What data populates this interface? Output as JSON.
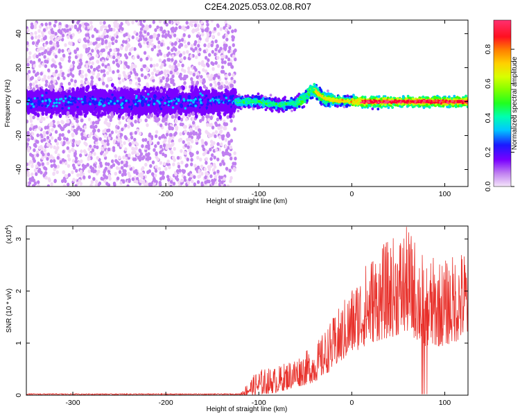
{
  "title": "C2E4.2025.053.02.08.R07",
  "chart_data": [
    {
      "type": "heatmap",
      "title": "C2E4.2025.053.02.08.R07",
      "xlabel": "Height of straight line (km)",
      "ylabel": "Frequency (Hz)",
      "xlim": [
        -350,
        125
      ],
      "ylim": [
        -50,
        48
      ],
      "xticks": [
        -300,
        -200,
        -100,
        0,
        100
      ],
      "yticks": [
        -40,
        -20,
        0,
        20,
        40
      ],
      "colorbar": {
        "label": "Normalized spectral amplitude",
        "range": [
          0,
          0.97
        ],
        "ticks": [
          "0.0",
          "0.2",
          "0.4",
          "0.6",
          "0.8"
        ],
        "colormap": [
          "#f2d9f7",
          "#c080f0",
          "#7a00ff",
          "#1a1aff",
          "#00c8ff",
          "#00ff90",
          "#3cff00",
          "#c8ff00",
          "#ffd000",
          "#ff7000",
          "#ff0030",
          "#ff4080"
        ]
      },
      "ridge": {
        "description_points_x": [
          -125,
          -100,
          -80,
          -60,
          -50,
          -45,
          -40,
          -35,
          -30,
          -20,
          0,
          20,
          40,
          60,
          80,
          100,
          125
        ],
        "description_points_freq": [
          0,
          0,
          -2,
          -1,
          2,
          6,
          7,
          4,
          2,
          1,
          0,
          0,
          0,
          0,
          0,
          0,
          0
        ]
      }
    },
    {
      "type": "line",
      "xlabel": "Height of straight line (km)",
      "ylabel": "SNR (10 * v/v)",
      "exponent_label": "(x10",
      "exponent_power": "4",
      "exponent_close": ")",
      "xlim": [
        -350,
        125
      ],
      "ylim": [
        0,
        3.25
      ],
      "xticks": [
        -300,
        -200,
        -100,
        0,
        100
      ],
      "yticks": [
        0,
        1,
        2,
        3
      ],
      "series_color": "#e8302a",
      "envelope": {
        "x": [
          -350,
          -120,
          -110,
          -100,
          -80,
          -60,
          -40,
          -20,
          0,
          20,
          40,
          60,
          80,
          100,
          125
        ],
        "upper": [
          0.03,
          0.04,
          0.3,
          0.5,
          0.55,
          0.75,
          0.95,
          1.5,
          2.1,
          2.7,
          3.0,
          3.25,
          2.7,
          2.6,
          2.9
        ],
        "lower": [
          0.0,
          0.0,
          0.0,
          0.0,
          0.05,
          0.15,
          0.25,
          0.5,
          0.8,
          1.0,
          1.1,
          1.2,
          0.9,
          0.95,
          1.1
        ]
      }
    }
  ]
}
